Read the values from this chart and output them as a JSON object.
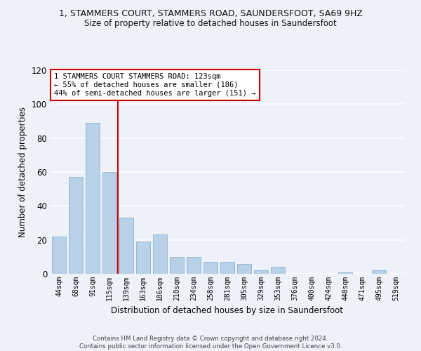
{
  "title": "1, STAMMERS COURT, STAMMERS ROAD, SAUNDERSFOOT, SA69 9HZ",
  "subtitle": "Size of property relative to detached houses in Saundersfoot",
  "xlabel": "Distribution of detached houses by size in Saundersfoot",
  "ylabel": "Number of detached properties",
  "bar_labels": [
    "44sqm",
    "68sqm",
    "91sqm",
    "115sqm",
    "139sqm",
    "163sqm",
    "186sqm",
    "210sqm",
    "234sqm",
    "258sqm",
    "281sqm",
    "305sqm",
    "329sqm",
    "353sqm",
    "376sqm",
    "400sqm",
    "424sqm",
    "448sqm",
    "471sqm",
    "495sqm",
    "519sqm"
  ],
  "bar_values": [
    22,
    57,
    89,
    60,
    33,
    19,
    23,
    10,
    10,
    7,
    7,
    6,
    2,
    4,
    0,
    0,
    0,
    1,
    0,
    2,
    0
  ],
  "bar_color": "#b8d0e8",
  "bar_edge_color": "#7aaac8",
  "ylim": [
    0,
    120
  ],
  "yticks": [
    0,
    20,
    40,
    60,
    80,
    100,
    120
  ],
  "vline_bar_index": 3,
  "vline_color": "#cc0000",
  "annotation_lines": [
    "1 STAMMERS COURT STAMMERS ROAD: 123sqm",
    "← 55% of detached houses are smaller (186)",
    "44% of semi-detached houses are larger (151) →"
  ],
  "annotation_box_color": "#cc0000",
  "footer_line1": "Contains HM Land Registry data © Crown copyright and database right 2024.",
  "footer_line2": "Contains public sector information licensed under the Open Government Licence v3.0.",
  "background_color": "#eef2f8",
  "grid_color": "#ffffff"
}
